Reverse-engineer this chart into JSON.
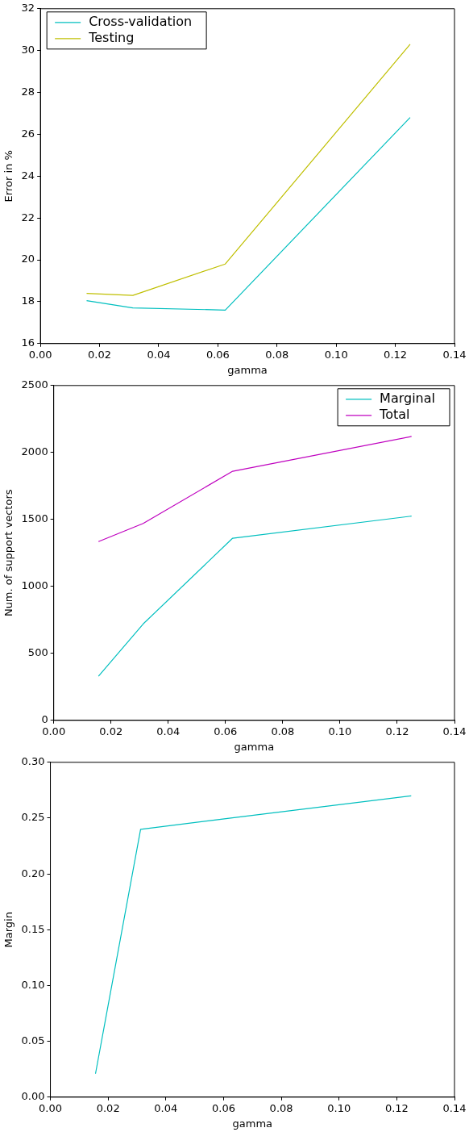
{
  "chart_data": [
    {
      "type": "line",
      "xlabel": "gamma",
      "ylabel": "Error in %",
      "x": [
        0.015625,
        0.03125,
        0.0625,
        0.125
      ],
      "xlim": [
        0,
        0.14
      ],
      "xticks": [
        {
          "value": 0,
          "label": "0.00"
        },
        {
          "value": 0.02,
          "label": "0.02"
        },
        {
          "value": 0.04,
          "label": "0.04"
        },
        {
          "value": 0.06,
          "label": "0.06"
        },
        {
          "value": 0.08,
          "label": "0.08"
        },
        {
          "value": 0.1,
          "label": "0.10"
        },
        {
          "value": 0.12,
          "label": "0.12"
        },
        {
          "value": 0.14,
          "label": "0.14"
        }
      ],
      "ylim": [
        16,
        32
      ],
      "yticks": [
        16,
        18,
        20,
        22,
        24,
        26,
        28,
        30,
        32
      ],
      "grid": false,
      "legend": "top left",
      "marker": "none",
      "series": [
        {
          "name": "Cross-validation",
          "color": "#00bfbf",
          "values": [
            18.05,
            17.7,
            17.6,
            26.8
          ]
        },
        {
          "name": "Testing",
          "color": "#bfbf00",
          "values": [
            18.4,
            18.3,
            19.8,
            30.3
          ]
        }
      ]
    },
    {
      "type": "line",
      "xlabel": "gamma",
      "ylabel": "Num. of support vectors",
      "x": [
        0.015625,
        0.03125,
        0.0625,
        0.125
      ],
      "xlim": [
        0,
        0.14
      ],
      "xticks": [
        {
          "value": 0,
          "label": "0.00"
        },
        {
          "value": 0.02,
          "label": "0.02"
        },
        {
          "value": 0.04,
          "label": "0.04"
        },
        {
          "value": 0.06,
          "label": "0.06"
        },
        {
          "value": 0.08,
          "label": "0.08"
        },
        {
          "value": 0.1,
          "label": "0.10"
        },
        {
          "value": 0.12,
          "label": "0.12"
        },
        {
          "value": 0.14,
          "label": "0.14"
        }
      ],
      "ylim": [
        0,
        2500
      ],
      "yticks": [
        0,
        500,
        1000,
        1500,
        2000,
        2500
      ],
      "grid": false,
      "legend": "top right",
      "marker": "none",
      "series": [
        {
          "name": "Marginal",
          "color": "#00bfbf",
          "values": [
            330,
            720,
            1360,
            1525
          ]
        },
        {
          "name": "Total",
          "color": "#bf00bf",
          "values": [
            1335,
            1470,
            1860,
            2120
          ]
        }
      ]
    },
    {
      "type": "line",
      "xlabel": "gamma",
      "ylabel": "Margin",
      "x": [
        0.015625,
        0.03125,
        0.0625,
        0.125
      ],
      "xlim": [
        0,
        0.14
      ],
      "xticks": [
        {
          "value": 0,
          "label": "0.00"
        },
        {
          "value": 0.02,
          "label": "0.02"
        },
        {
          "value": 0.04,
          "label": "0.04"
        },
        {
          "value": 0.06,
          "label": "0.06"
        },
        {
          "value": 0.08,
          "label": "0.08"
        },
        {
          "value": 0.1,
          "label": "0.10"
        },
        {
          "value": 0.12,
          "label": "0.12"
        },
        {
          "value": 0.14,
          "label": "0.14"
        }
      ],
      "ylim": [
        0,
        0.3
      ],
      "yticks": [
        {
          "value": 0,
          "label": "0.00"
        },
        {
          "value": 0.05,
          "label": "0.05"
        },
        {
          "value": 0.1,
          "label": "0.10"
        },
        {
          "value": 0.15,
          "label": "0.15"
        },
        {
          "value": 0.2,
          "label": "0.20"
        },
        {
          "value": 0.25,
          "label": "0.25"
        },
        {
          "value": 0.3,
          "label": "0.30"
        }
      ],
      "grid": false,
      "marker": "none",
      "series": [
        {
          "color": "#00bfbf",
          "values": [
            0.021,
            0.24,
            0.25,
            0.27
          ]
        }
      ]
    }
  ]
}
